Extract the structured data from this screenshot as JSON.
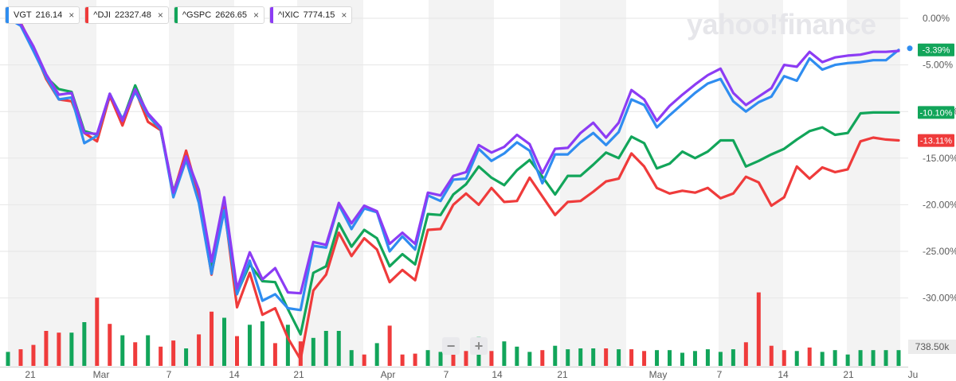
{
  "legend": [
    {
      "symbol": "VGT",
      "value": "216.14",
      "color": "#2f8df0",
      "close": "×"
    },
    {
      "symbol": "^DJI",
      "value": "22327.48",
      "color": "#ef3b3b",
      "close": "×"
    },
    {
      "symbol": "^GSPC",
      "value": "2626.65",
      "color": "#12a55a",
      "close": "×"
    },
    {
      "symbol": "^IXIC",
      "value": "7774.15",
      "color": "#8c3cf4",
      "close": "×"
    }
  ],
  "brand": "yahoo!finance",
  "zoom": {
    "minus": "−",
    "plus": "+"
  },
  "chart_data": {
    "type": "line",
    "x": [
      "Feb 19",
      "Feb 20",
      "Feb 21",
      "Feb 24",
      "Feb 25",
      "Feb 26",
      "Feb 27",
      "Feb 28",
      "Mar 2",
      "Mar 3",
      "Mar 4",
      "Mar 5",
      "Mar 6",
      "Mar 9",
      "Mar 10",
      "Mar 11",
      "Mar 12",
      "Mar 13",
      "Mar 16",
      "Mar 17",
      "Mar 18",
      "Mar 19",
      "Mar 20",
      "Mar 23",
      "Mar 24",
      "Mar 25",
      "Mar 26",
      "Mar 27",
      "Mar 30",
      "Mar 31",
      "Apr 1",
      "Apr 2",
      "Apr 3",
      "Apr 6",
      "Apr 7",
      "Apr 8",
      "Apr 9",
      "Apr 13",
      "Apr 14",
      "Apr 15",
      "Apr 16",
      "Apr 17",
      "Apr 20",
      "Apr 21",
      "Apr 22",
      "Apr 23",
      "Apr 24",
      "Apr 27",
      "Apr 28",
      "Apr 29",
      "Apr 30",
      "May 1",
      "May 4",
      "May 5",
      "May 6",
      "May 7",
      "May 8",
      "May 11",
      "May 12",
      "May 13",
      "May 14",
      "May 15",
      "May 18",
      "May 19",
      "May 20",
      "May 21",
      "May 22",
      "May 26",
      "May 27",
      "May 28",
      "May 29"
    ],
    "x_tick_labels": [
      "21",
      "Mar",
      "7",
      "14",
      "21",
      "Apr",
      "7",
      "14",
      "21",
      "May",
      "7",
      "14",
      "21",
      "Ju"
    ],
    "y_ticks": [
      "0.00%",
      "-5.00%",
      "-10.00%",
      "-15.00%",
      "-20.00%",
      "-25.00%",
      "-30.00%"
    ],
    "ylim": [
      -37,
      1
    ],
    "series": [
      {
        "name": "VGT",
        "color": "#2f8df0",
        "values": [
          0.0,
          -0.8,
          -3.5,
          -6.3,
          -8.7,
          -8.5,
          -13.4,
          -12.6,
          -8.1,
          -10.8,
          -7.9,
          -10.4,
          -11.9,
          -19.2,
          -15.2,
          -19.8,
          -27.4,
          -20.6,
          -29.6,
          -26.0,
          -30.3,
          -29.6,
          -31.1,
          -31.3,
          -24.4,
          -24.6,
          -20.0,
          -22.6,
          -20.4,
          -20.8,
          -25.0,
          -23.4,
          -24.8,
          -19.0,
          -19.6,
          -17.3,
          -17.2,
          -14.0,
          -15.3,
          -14.5,
          -13.3,
          -14.2,
          -17.7,
          -14.6,
          -14.6,
          -13.3,
          -12.3,
          -13.6,
          -12.2,
          -8.7,
          -9.3,
          -11.7,
          -10.4,
          -9.2,
          -8.0,
          -7.0,
          -6.5,
          -8.9,
          -10.0,
          -9.0,
          -8.4,
          -6.2,
          -6.7,
          -4.3,
          -5.5,
          -5.0,
          -4.8,
          -4.7,
          -4.5,
          -4.5,
          -3.4
        ]
      },
      {
        "name": "^DJI",
        "color": "#ef3b3b",
        "values": [
          0.0,
          -0.5,
          -3.2,
          -6.5,
          -8.7,
          -8.9,
          -12.3,
          -13.2,
          -8.3,
          -11.5,
          -7.7,
          -11.1,
          -12.0,
          -18.8,
          -14.2,
          -19.1,
          -27.5,
          -20.2,
          -31.0,
          -27.3,
          -31.8,
          -31.1,
          -34.3,
          -36.6,
          -29.2,
          -27.5,
          -23.0,
          -25.5,
          -23.6,
          -24.8,
          -28.3,
          -27.0,
          -28.1,
          -22.7,
          -22.6,
          -20.0,
          -18.8,
          -20.0,
          -18.2,
          -19.7,
          -19.6,
          -17.1,
          -19.1,
          -21.1,
          -19.7,
          -19.6,
          -18.6,
          -17.5,
          -17.2,
          -14.5,
          -15.9,
          -18.2,
          -18.8,
          -18.5,
          -18.7,
          -18.2,
          -19.3,
          -18.8,
          -17.0,
          -17.6,
          -20.1,
          -19.2,
          -15.9,
          -17.2,
          -16.0,
          -16.5,
          -16.2,
          -13.2,
          -12.8,
          -13.0,
          -13.1
        ]
      },
      {
        "name": "^GSPC",
        "color": "#12a55a",
        "values": [
          0.0,
          -0.5,
          -3.4,
          -6.3,
          -7.6,
          -7.9,
          -12.1,
          -12.5,
          -8.4,
          -11.0,
          -7.2,
          -10.4,
          -12.0,
          -18.6,
          -14.7,
          -19.1,
          -26.6,
          -20.2,
          -29.5,
          -26.4,
          -28.2,
          -28.3,
          -31.2,
          -33.9,
          -27.3,
          -26.6,
          -22.0,
          -24.5,
          -22.7,
          -23.6,
          -26.6,
          -25.3,
          -26.4,
          -21.0,
          -21.1,
          -18.9,
          -17.8,
          -15.9,
          -17.1,
          -17.9,
          -16.3,
          -15.2,
          -17.0,
          -18.9,
          -16.9,
          -16.9,
          -15.7,
          -14.4,
          -15.0,
          -12.7,
          -13.4,
          -16.1,
          -15.6,
          -14.3,
          -15.0,
          -14.3,
          -13.1,
          -13.1,
          -15.9,
          -15.3,
          -14.6,
          -14.0,
          -13.0,
          -12.1,
          -11.7,
          -12.5,
          -12.3,
          -10.2,
          -10.1,
          -10.1,
          -10.1
        ]
      },
      {
        "name": "^IXIC",
        "color": "#8c3cf4",
        "values": [
          0.0,
          -0.6,
          -3.0,
          -6.0,
          -8.2,
          -8.0,
          -12.3,
          -12.4,
          -8.1,
          -11.0,
          -7.6,
          -10.2,
          -11.7,
          -18.7,
          -14.8,
          -18.4,
          -26.1,
          -19.2,
          -29.0,
          -25.1,
          -28.0,
          -26.8,
          -29.4,
          -29.5,
          -24.0,
          -24.3,
          -19.8,
          -22.0,
          -20.1,
          -20.7,
          -24.2,
          -23.0,
          -24.2,
          -18.7,
          -19.0,
          -16.9,
          -16.5,
          -13.6,
          -14.4,
          -13.8,
          -12.5,
          -13.5,
          -16.6,
          -14.0,
          -13.9,
          -12.3,
          -11.2,
          -12.8,
          -11.2,
          -7.7,
          -8.7,
          -11.0,
          -9.4,
          -8.2,
          -7.1,
          -6.1,
          -5.4,
          -8.0,
          -9.3,
          -8.4,
          -7.5,
          -5.0,
          -5.2,
          -3.6,
          -4.7,
          -4.2,
          -4.0,
          -3.9,
          -3.6,
          -3.6,
          -3.5
        ]
      }
    ],
    "end_labels": [
      {
        "text": "-3.39%",
        "color": "#2f8df0",
        "value": -3.39,
        "badge_color": "#12a55a"
      },
      {
        "text": "-10.10%",
        "value": -10.1,
        "badge_color": "#12a55a"
      },
      {
        "text": "-13.11%",
        "value": -13.11,
        "badge_color": "#ef3b3b"
      }
    ],
    "volume": {
      "label": "738.50k",
      "values": [
        0.16,
        0.19,
        0.24,
        0.4,
        0.38,
        0.38,
        0.5,
        0.78,
        0.48,
        0.35,
        0.27,
        0.35,
        0.22,
        0.29,
        0.2,
        0.36,
        0.62,
        0.55,
        0.34,
        0.47,
        0.51,
        0.26,
        0.47,
        0.28,
        0.32,
        0.4,
        0.4,
        0.18,
        0.13,
        0.26,
        0.46,
        0.13,
        0.14,
        0.18,
        0.16,
        0.31,
        0.17,
        0.33,
        0.17,
        0.28,
        0.22,
        0.16,
        0.18,
        0.23,
        0.19,
        0.2,
        0.2,
        0.2,
        0.19,
        0.19,
        0.17,
        0.18,
        0.18,
        0.15,
        0.17,
        0.19,
        0.16,
        0.19,
        0.27,
        0.84,
        0.23,
        0.18,
        0.17,
        0.21,
        0.16,
        0.18,
        0.13,
        0.18,
        0.18,
        0.18,
        0.18
      ],
      "colors": [
        "g",
        "r",
        "r",
        "r",
        "r",
        "g",
        "g",
        "r",
        "r",
        "g",
        "r",
        "g",
        "r",
        "r",
        "g",
        "r",
        "r",
        "g",
        "r",
        "g",
        "g",
        "r",
        "g",
        "r",
        "g",
        "g",
        "g",
        "g",
        "r",
        "g",
        "r",
        "r",
        "r",
        "g",
        "g",
        "r",
        "r",
        "g",
        "r",
        "g",
        "g",
        "g",
        "r",
        "g",
        "g",
        "g",
        "g",
        "r",
        "g",
        "r",
        "r",
        "g",
        "g",
        "g",
        "g",
        "g",
        "g",
        "g",
        "r",
        "r",
        "r",
        "r",
        "g",
        "r",
        "g",
        "g",
        "g",
        "g",
        "g",
        "g",
        "g"
      ],
      "green": "#12a55a",
      "red": "#ef3b3b"
    }
  }
}
